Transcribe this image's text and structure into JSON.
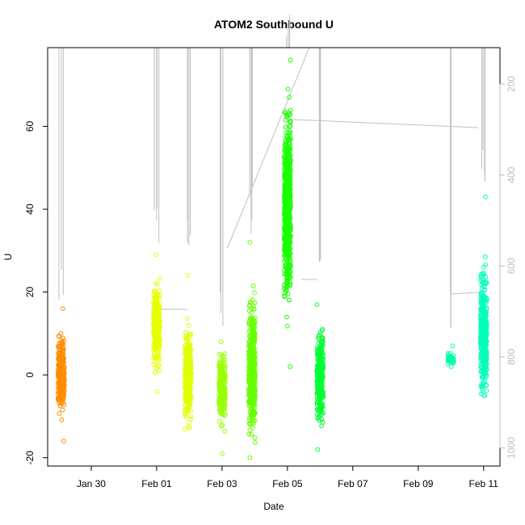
{
  "chart_data": {
    "type": "scatter",
    "title": "ATOM2 Southbound U",
    "xlabel": "Date",
    "ylabel": "U",
    "y_range": [
      -22,
      79
    ],
    "x_range_days": [
      "2025-01-28T16:00",
      "2025-02-11T12:00"
    ],
    "y_ticks": [
      -20,
      0,
      20,
      40,
      60
    ],
    "x_ticks": [
      {
        "date": "2025-01-30",
        "label": "Jan 30"
      },
      {
        "date": "2025-02-01",
        "label": "Feb 01"
      },
      {
        "date": "2025-02-03",
        "label": "Feb 03"
      },
      {
        "date": "2025-02-05",
        "label": "Feb 05"
      },
      {
        "date": "2025-02-07",
        "label": "Feb 07"
      },
      {
        "date": "2025-02-09",
        "label": "Feb 09"
      },
      {
        "date": "2025-02-11",
        "label": "Feb 11"
      }
    ],
    "right_axis": {
      "ticks": [
        200,
        400,
        600,
        800,
        1000
      ],
      "range": [
        120,
        1040
      ],
      "reversed": true,
      "color": "#bdbdbd"
    },
    "depth_trace_color": "#c0c0c0",
    "clusters": [
      {
        "date": "2025-01-29T02:00",
        "min": -16,
        "max": 16,
        "color": "#ff8c00",
        "center": 0
      },
      {
        "date": "2025-02-01T00:00",
        "min": -4,
        "max": 29,
        "color": "#e8ff00",
        "center": 12
      },
      {
        "date": "2025-02-01T23:00",
        "min": -13,
        "max": 24,
        "color": "#e0ff00",
        "center": 0
      },
      {
        "date": "2025-02-03T00:00",
        "min": -19,
        "max": 8,
        "color": "#99ff00",
        "center": -3
      },
      {
        "date": "2025-02-03T22:00",
        "min": -20,
        "max": 32,
        "color": "#66ff00",
        "center": 2
      },
      {
        "date": "2025-02-05T00:00",
        "min": 2,
        "max": 76,
        "color": "#1aff00",
        "center": 40
      },
      {
        "date": "2025-02-06T00:00",
        "min": -18,
        "max": 17,
        "color": "#00ff33",
        "center": 0
      },
      {
        "date": "2025-02-10T00:00",
        "min": 2,
        "max": 7,
        "color": "#00ffaa",
        "center": 4
      },
      {
        "date": "2025-02-11T00:00",
        "min": -5,
        "max": 43,
        "color": "#00ffbb",
        "center": 10
      }
    ]
  }
}
